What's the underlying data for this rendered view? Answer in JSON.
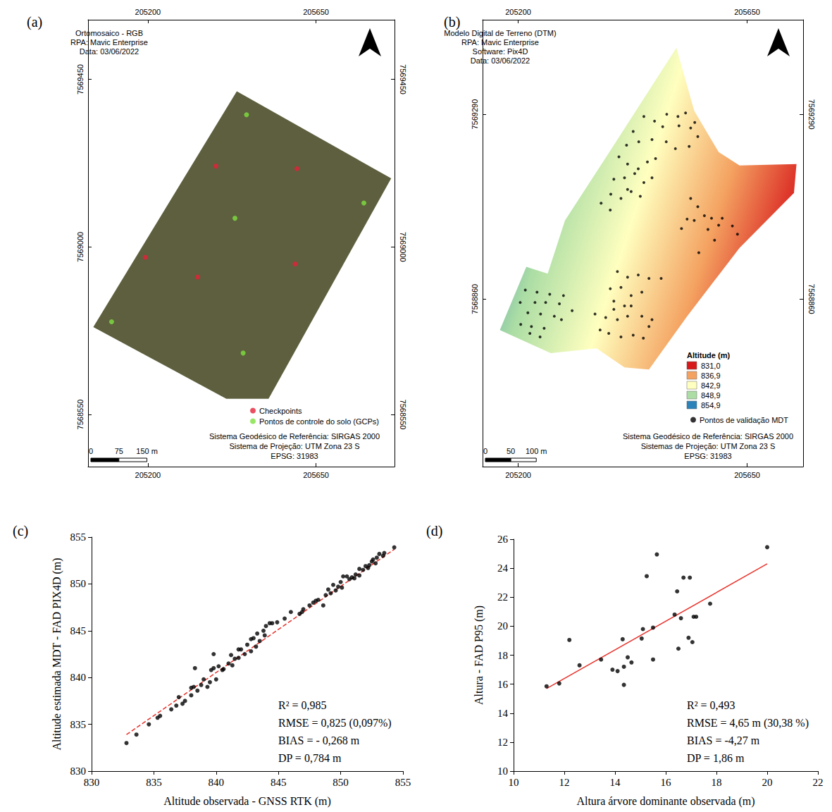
{
  "chart_data": [
    {
      "type": "map",
      "panel_label": "(a)",
      "title_lines": [
        "Ortomosaico - RGB",
        "RPA: Mavic Enterprise",
        "Data: 03/06/2022"
      ],
      "xlim": [
        205040,
        205860
      ],
      "xticks": [
        205200,
        205650
      ],
      "ylim": [
        7568410,
        7569610
      ],
      "yticks": [
        7568550,
        7569000,
        7569450
      ],
      "grid": false,
      "legend": "lower right",
      "surface": {
        "x": [
          205054,
          205438,
          205851,
          205523,
          205410
        ],
        "values": [
          7568785,
          7569418,
          7569184,
          7568592,
          7568592
        ],
        "color": "#5d5f3e"
      },
      "series": [
        {
          "name": "Checkpoints",
          "color": "#e6203a",
          "marker": "circle",
          "x": [
            205382,
            205599,
            205193,
            205333,
            205594
          ],
          "values": [
            7569217,
            7569210,
            7568972,
            7568919,
            7568954
          ]
        },
        {
          "name": "Pontos de controle do solo (GCPs)",
          "color": "#80e040",
          "marker": "circle",
          "x": [
            205464,
            205433,
            205778,
            205103,
            205455
          ],
          "values": [
            7569355,
            7569077,
            7569118,
            7568799,
            7568715
          ]
        }
      ],
      "scale_bar": [
        {
          "value": 0,
          "label": "0"
        },
        {
          "value": 75,
          "label": "75"
        },
        {
          "value": 150,
          "label": "150 m"
        }
      ],
      "footer": [
        "Sistema Geodésico de Referência: SIRGAS 2000",
        "Sistema de Projeção: UTM Zona 23 S",
        "EPSG: 31983"
      ]
    },
    {
      "type": "map",
      "panel_label": "(b)",
      "title_lines": [
        "Modelo Digital de Terreno (DTM)",
        "RPA: Mavic Enterprise",
        "Software: Pix4D",
        "Data: 03/06/2022"
      ],
      "xlim": [
        205130,
        205760
      ],
      "xticks": [
        205200,
        205650
      ],
      "ylim": [
        7568470,
        7569510
      ],
      "yticks": [
        7568860,
        7569290
      ],
      "grid": false,
      "legend": "lower right",
      "surface": {
        "x": [
          205164,
          205216,
          205258,
          205292,
          205388,
          205511,
          205546,
          205594,
          205635,
          205747,
          205742,
          205635,
          205532,
          205457,
          205409,
          205354,
          205264
        ],
        "values": [
          7568788,
          7568935,
          7568919,
          7569043,
          7569218,
          7569445,
          7569298,
          7569202,
          7569171,
          7569174,
          7569107,
          7568979,
          7568820,
          7568696,
          7568701,
          7568745,
          7568734
        ],
        "title": "Altitude (m)",
        "levels": [
          {
            "value": 831.0,
            "label": "831,0",
            "color": "#d7191c"
          },
          {
            "value": 836.9,
            "label": "836,9",
            "color": "#f4a261"
          },
          {
            "value": 842.9,
            "label": "842,9",
            "color": "#ffffbf"
          },
          {
            "value": 848.9,
            "label": "848,9",
            "color": "#abdda4"
          },
          {
            "value": 854.9,
            "label": "854,9",
            "color": "#2b83ba"
          }
        ]
      },
      "series": [
        {
          "name": "Pontos de validação MDT",
          "color": "#000000",
          "marker": "circle",
          "x": [
            205447,
            205468,
            205492,
            205514,
            205529,
            205547,
            205426,
            205484,
            205516,
            205539,
            205413,
            205437,
            205463,
            205491,
            205509,
            205536,
            205553,
            205398,
            205415,
            205436,
            205454,
            205470,
            205388,
            205409,
            205429,
            205447,
            205463,
            205382,
            205402,
            205422,
            205440,
            205363,
            205381,
            205415,
            205539,
            205553,
            205566,
            205546,
            205580,
            205594,
            205573,
            205601,
            205621,
            205521,
            205586,
            205631,
            205555,
            205532,
            205395,
            205415,
            205436,
            205457,
            205481,
            205381,
            205402,
            205422,
            205443,
            205388,
            205409,
            205351,
            205372,
            205395,
            205415,
            205443,
            205463,
            205361,
            205378,
            205402,
            205426,
            205446,
            205422,
            205457,
            205388,
            205214,
            205237,
            205262,
            205289,
            205204,
            205233,
            205254,
            205281,
            205306,
            205219,
            205244,
            205271,
            205205,
            205226,
            205251,
            205285,
            205223,
            205243
          ],
          "values": [
            7569285,
            7569274,
            7569290,
            7569285,
            7569293,
            7569271,
            7569250,
            7569261,
            7569263,
            7569258,
            7569218,
            7569226,
            7569231,
            7569226,
            7569210,
            7569215,
            7569238,
            7569191,
            7569174,
            7569163,
            7569179,
            7569187,
            7569139,
            7569142,
            7569152,
            7569131,
            7569142,
            7569104,
            7569094,
            7569110,
            7569099,
            7569083,
            7569067,
            7569115,
            7569094,
            7569075,
            7569054,
            7569043,
            7569048,
            7569032,
            7569022,
            7569048,
            7569030,
            7569024,
            7568997,
            7569011,
            7568968,
            7569046,
            7568924,
            7568911,
            7568916,
            7568908,
            7568908,
            7568884,
            7568887,
            7568868,
            7568876,
            7568855,
            7568844,
            7568825,
            7568817,
            7568812,
            7568820,
            7568820,
            7568812,
            7568788,
            7568780,
            7568772,
            7568776,
            7568769,
            7568844,
            7568796,
            7568836,
            7568881,
            7568876,
            7568871,
            7568868,
            7568852,
            7568852,
            7568852,
            7568849,
            7568833,
            7568828,
            7568825,
            7568820,
            7568801,
            7568796,
            7568792,
            7568812,
            7568780,
            7568772
          ]
        }
      ],
      "scale_bar": [
        {
          "value": 0,
          "label": "0"
        },
        {
          "value": 50,
          "label": "50"
        },
        {
          "value": 100,
          "label": "100 m"
        }
      ],
      "footer": [
        "Sistema Geodésico de Referência: SIRGAS 2000",
        "Sistemas de Projeção: UTM Zona 23 S",
        "EPSG: 31983"
      ]
    },
    {
      "type": "scatter",
      "panel_label": "(c)",
      "xlabel": "Altitude observada - GNSS RTK (m)",
      "ylabel": "Altitude estimada MDT - FAD PIX4D (m)",
      "xlim": [
        830,
        855
      ],
      "xticks": [
        830,
        835,
        840,
        845,
        850,
        855
      ],
      "ylim": [
        830,
        855
      ],
      "yticks": [
        830,
        835,
        840,
        845,
        850,
        855
      ],
      "grid": false,
      "color": "#000000",
      "marker": "circle",
      "x": [
        832.8,
        833.6,
        834.6,
        835.3,
        835.5,
        836.4,
        836.8,
        837.0,
        837.3,
        837.5,
        838.0,
        838.2,
        838.0,
        838.3,
        838.5,
        838.8,
        839.0,
        839.3,
        839.5,
        839.6,
        839.8,
        839.8,
        840.0,
        840.2,
        840.5,
        840.6,
        841.0,
        841.2,
        841.3,
        841.5,
        841.8,
        841.8,
        842.0,
        842.3,
        842.5,
        842.8,
        842.8,
        843.0,
        843.2,
        843.3,
        843.5,
        843.8,
        843.9,
        844.0,
        844.3,
        844.5,
        844.9,
        845.5,
        846.0,
        846.7,
        846.9,
        847.0,
        847.5,
        847.8,
        848.0,
        848.2,
        848.6,
        848.8,
        849.0,
        849.2,
        849.4,
        849.6,
        849.8,
        850.0,
        850.1,
        850.2,
        850.5,
        850.7,
        850.9,
        851.1,
        851.2,
        851.5,
        851.5,
        851.8,
        852.0,
        852.2,
        852.3,
        852.5,
        852.6,
        852.8,
        852.9,
        853.1,
        853.4,
        853.5,
        854.3
      ],
      "values": [
        833.0,
        833.9,
        835.0,
        835.7,
        835.9,
        836.6,
        837.0,
        837.9,
        837.2,
        837.5,
        838.9,
        839.0,
        838.1,
        841.0,
        838.6,
        839.2,
        839.8,
        839.0,
        839.5,
        840.8,
        842.5,
        841.0,
        839.8,
        841.2,
        840.8,
        840.9,
        841.5,
        842.4,
        841.3,
        842.0,
        842.1,
        843.0,
        843.0,
        842.5,
        843.5,
        844.1,
        842.8,
        844.2,
        843.3,
        844.7,
        843.9,
        845.0,
        844.5,
        845.5,
        845.8,
        845.8,
        845.9,
        846.3,
        847.0,
        846.8,
        847.0,
        847.3,
        847.7,
        848.0,
        848.2,
        848.3,
        847.7,
        848.8,
        849.4,
        849.0,
        849.9,
        849.3,
        849.7,
        850.2,
        849.6,
        850.8,
        850.8,
        850.5,
        850.7,
        850.6,
        851.0,
        850.9,
        851.6,
        851.5,
        851.9,
        851.7,
        852.0,
        852.4,
        852.6,
        852.2,
        852.8,
        853.2,
        853.0,
        853.3,
        853.9
      ],
      "fit_line": {
        "x": [
          832.8,
          854.3
        ],
        "values": [
          833.9,
          853.7
        ],
        "color": "#e8312a",
        "line_style": "dashed"
      },
      "annotations": [
        "R² = 0,985",
        "RMSE = 0,825 (0,097%)",
        "BIAS = - 0,268 m",
        "DP = 0,784 m"
      ]
    },
    {
      "type": "scatter",
      "panel_label": "(d)",
      "xlabel": "Altura árvore dominante observada (m)",
      "ylabel": "Altura - FAD P95 (m)",
      "xlim": [
        10,
        22
      ],
      "xticks": [
        10,
        12,
        14,
        16,
        18,
        20,
        22
      ],
      "ylim": [
        10,
        26
      ],
      "yticks": [
        10,
        12,
        14,
        16,
        18,
        20,
        22,
        24,
        26
      ],
      "grid": false,
      "color": "#000000",
      "marker": "circle",
      "x": [
        11.3,
        11.8,
        12.2,
        12.6,
        13.45,
        13.9,
        14.1,
        14.3,
        14.35,
        14.35,
        14.5,
        14.65,
        15.05,
        15.1,
        15.25,
        15.5,
        15.5,
        15.65,
        16.35,
        16.45,
        16.5,
        16.6,
        16.7,
        16.9,
        16.95,
        17.05,
        17.1,
        17.2,
        17.75,
        20.0
      ],
      "values": [
        15.85,
        16.05,
        19.05,
        17.3,
        17.7,
        17.0,
        16.9,
        19.1,
        17.2,
        15.95,
        17.85,
        17.5,
        19.15,
        19.8,
        23.45,
        19.9,
        17.7,
        24.95,
        20.8,
        22.4,
        18.45,
        20.55,
        23.35,
        19.2,
        23.35,
        18.9,
        20.65,
        20.65,
        21.55,
        25.45
      ],
      "fit_line": {
        "x": [
          11.3,
          20.0
        ],
        "values": [
          15.7,
          24.3
        ],
        "color": "#e8312a",
        "line_style": "solid"
      },
      "annotations": [
        "R² = 0,493",
        "RMSE = 4,65 m (30,38 %)",
        "BIAS = -4,27 m",
        "DP = 1,86 m"
      ]
    }
  ]
}
